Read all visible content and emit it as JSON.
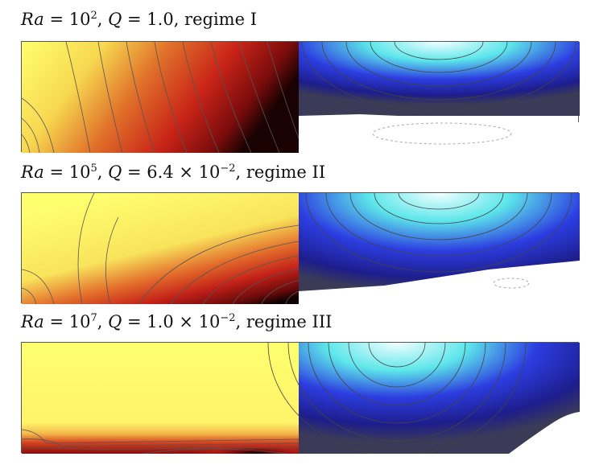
{
  "rows": [
    {
      "label_ra": "Ra",
      "eq1": " = 10",
      "exp1": "2",
      "sep1": ", ",
      "label_q": "Q",
      "eq2": " = 1.0",
      "exp2": "",
      "tail": ", regime I"
    },
    {
      "label_ra": "Ra",
      "eq1": " = 10",
      "exp1": "5",
      "sep1": ", ",
      "label_q": "Q",
      "eq2": " = 6.4 × 10",
      "exp2": "−2",
      "tail": ", regime II"
    },
    {
      "label_ra": "Ra",
      "eq1": " = 10",
      "exp1": "7",
      "sep1": ", ",
      "label_q": "Q",
      "eq2": " = 1.0 × 10",
      "exp2": "−2",
      "tail": ", regime III"
    }
  ],
  "colors": {
    "temperature_map": [
      "#ffff6e",
      "#f2c43c",
      "#cf3018",
      "#8a0d0d",
      "#000000"
    ],
    "flow_map": [
      "#f0ffff",
      "#4fe0e8",
      "#2a30e0",
      "#1a1a8a",
      "#3a3a55"
    ],
    "contour_line": "#666666",
    "solid_region": "#ffffff"
  }
}
